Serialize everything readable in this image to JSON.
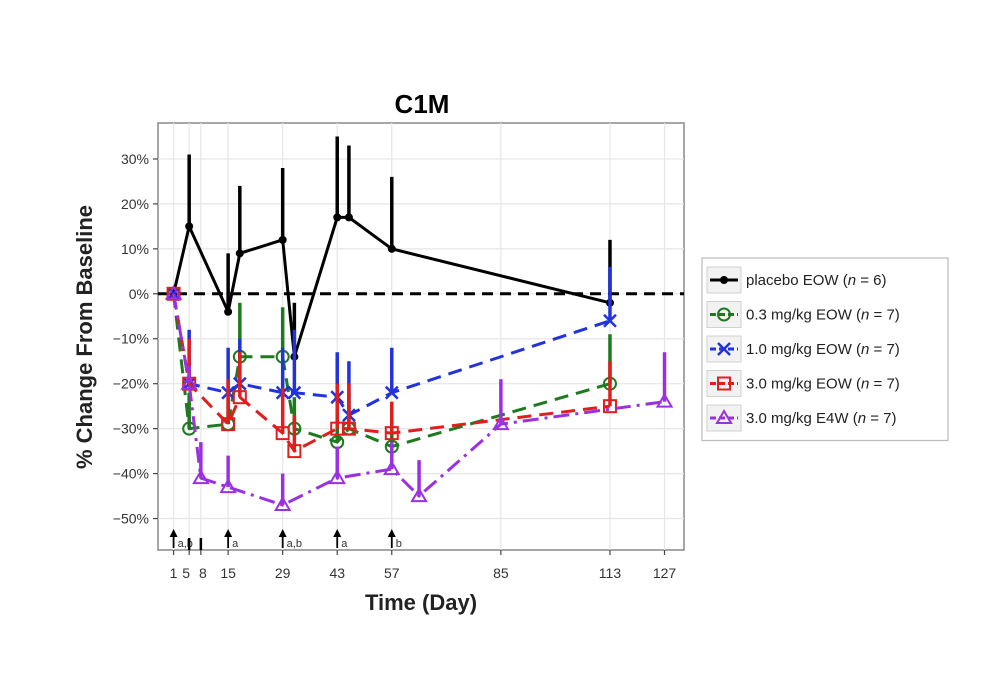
{
  "chart_data": {
    "type": "line",
    "title": "C1M",
    "xlabel": "Time (Day)",
    "ylabel": "% Change From Baseline",
    "xlim": [
      -3,
      132
    ],
    "ylim": [
      -57,
      38
    ],
    "x_ticks": [
      1,
      5,
      8,
      15,
      29,
      43,
      57,
      85,
      113,
      127
    ],
    "x_tick_labels": [
      "1",
      "5",
      "8",
      "15",
      "29",
      "43",
      "57",
      "85",
      "113",
      "127"
    ],
    "y_ticks": [
      -50,
      -40,
      -30,
      -20,
      -10,
      0,
      10,
      20,
      30
    ],
    "y_tick_labels": [
      "−50%",
      "−40%",
      "−30%",
      "−20%",
      "−10%",
      "0%",
      "10%",
      "20%",
      "30%"
    ],
    "reference_line": 0,
    "grid": true,
    "legend_position": "right",
    "dosing_annotations": [
      {
        "x": 1,
        "label": "a,b"
      },
      {
        "x": 15,
        "label": "a"
      },
      {
        "x": 29,
        "label": "a,b"
      },
      {
        "x": 43,
        "label": "a"
      },
      {
        "x": 57,
        "label": "b"
      }
    ],
    "series": [
      {
        "name": "placebo EOW (n = 6)",
        "legend_parts": [
          "placebo EOW (",
          "n",
          " = 6)"
        ],
        "color": "#000000",
        "marker": "dot",
        "dash": "",
        "x": [
          1,
          5,
          15,
          18,
          29,
          32,
          43,
          46,
          57,
          113
        ],
        "y": [
          0,
          15,
          -4,
          9,
          12,
          -14,
          17,
          17,
          10,
          -2
        ],
        "err_high": [
          null,
          31,
          9,
          24,
          28,
          -2,
          35,
          33,
          26,
          12
        ]
      },
      {
        "name": "0.3 mg/kg EOW (n = 7)",
        "legend_parts": [
          "0.3 mg/kg EOW (",
          "n",
          " = 7)"
        ],
        "color": "#1e7a1e",
        "marker": "circle",
        "dash": "14,8",
        "x": [
          1,
          5,
          15,
          18,
          29,
          32,
          43,
          46,
          57,
          113
        ],
        "y": [
          0,
          -30,
          -29,
          -14,
          -14,
          -30,
          -33,
          -30,
          -34,
          -20
        ],
        "err_high": [
          null,
          -22,
          -23,
          -2,
          -3,
          -23,
          -26,
          -22,
          -28,
          -9
        ]
      },
      {
        "name": "1.0 mg/kg EOW (n = 7)",
        "legend_parts": [
          "1.0 mg/kg EOW (",
          "n",
          " = 7)"
        ],
        "color": "#2233dd",
        "marker": "x",
        "dash": "14,8",
        "x": [
          1,
          5,
          15,
          18,
          29,
          32,
          43,
          46,
          57,
          113
        ],
        "y": [
          0,
          -20,
          -22,
          -20,
          -22,
          -22,
          -23,
          -27,
          -22,
          -6
        ],
        "err_high": [
          null,
          -8,
          -12,
          -10,
          -12,
          -8,
          -13,
          -15,
          -12,
          6
        ]
      },
      {
        "name": "3.0 mg/kg EOW (n = 7)",
        "legend_parts": [
          "3.0 mg/kg EOW (",
          "n",
          " = 7)"
        ],
        "color": "#e01e1e",
        "marker": "square",
        "dash": "14,8",
        "x": [
          1,
          5,
          15,
          18,
          29,
          32,
          43,
          46,
          57,
          113
        ],
        "y": [
          0,
          -20,
          -29,
          -23,
          -31,
          -35,
          -30,
          -30,
          -31,
          -25
        ],
        "err_high": [
          null,
          -10,
          -19,
          -13,
          -21,
          -27,
          -20,
          -20,
          -24,
          -15
        ]
      },
      {
        "name": "3.0 mg/kg E4W (n = 7)",
        "legend_parts": [
          "3.0 mg/kg E4W (",
          "n",
          " = 7)"
        ],
        "color": "#9b30e0",
        "marker": "triangle",
        "dash": "16,6,3,6",
        "x": [
          1,
          5,
          8,
          15,
          29,
          43,
          57,
          64,
          85,
          127
        ],
        "y": [
          0,
          -20,
          -41,
          -43,
          -47,
          -41,
          -39,
          -45,
          -29,
          -24
        ],
        "err_high": [
          null,
          -16,
          -33,
          -36,
          -40,
          -34,
          -33,
          -37,
          -19,
          -13
        ]
      }
    ]
  }
}
